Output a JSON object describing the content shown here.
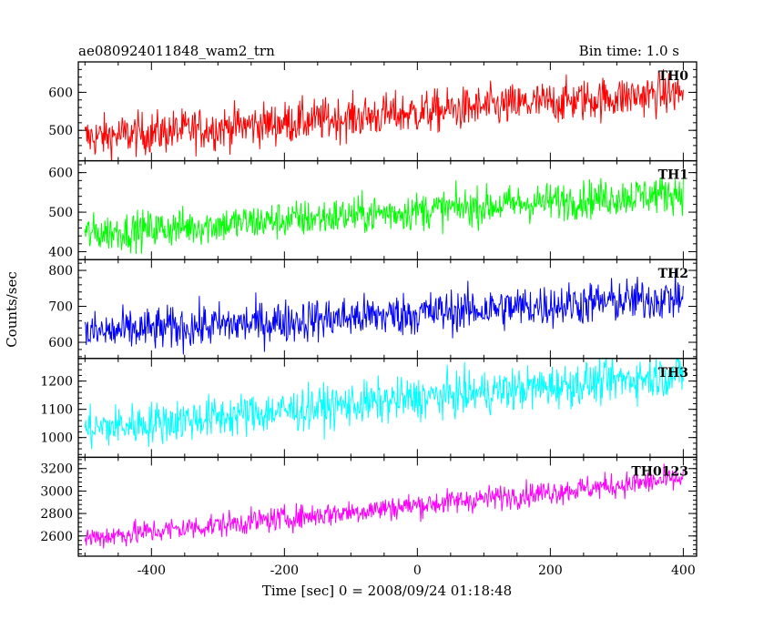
{
  "chart_data": {
    "type": "line",
    "title_left": "ae080924011848_wam2_trn",
    "title_right": "Bin time: 1.0 s",
    "xlabel": "Time [sec] 0 = 2008/09/24 01:18:48",
    "ylabel": "Counts/sec",
    "xlim": [
      -510,
      420
    ],
    "x_ticks": [
      -400,
      -200,
      0,
      200,
      400
    ],
    "x_range": [
      -500,
      400
    ],
    "grid": false,
    "panels": [
      {
        "name": "TH0",
        "color": "#ff0000",
        "ylim": [
          420,
          680
        ],
        "y_ticks": [
          500,
          600
        ],
        "trend_start": 480,
        "trend_end": 600,
        "noise": 28
      },
      {
        "name": "TH1",
        "color": "#00ff00",
        "ylim": [
          380,
          630
        ],
        "y_ticks": [
          400,
          500,
          600
        ],
        "trend_start": 445,
        "trend_end": 550,
        "noise": 24
      },
      {
        "name": "TH2",
        "color": "#0000ff",
        "ylim": [
          555,
          830
        ],
        "y_ticks": [
          600,
          700,
          800
        ],
        "trend_start": 625,
        "trend_end": 725,
        "noise": 30
      },
      {
        "name": "TH3",
        "color": "#00ffff",
        "ylim": [
          930,
          1280
        ],
        "y_ticks": [
          1000,
          1100,
          1200
        ],
        "trend_start": 1030,
        "trend_end": 1225,
        "noise": 38
      },
      {
        "name": "TH0123",
        "color": "#ff00ff",
        "ylim": [
          2420,
          3300
        ],
        "y_ticks": [
          2600,
          2800,
          3000,
          3200
        ],
        "trend_start": 2580,
        "trend_end": 3110,
        "noise": 55
      }
    ]
  }
}
